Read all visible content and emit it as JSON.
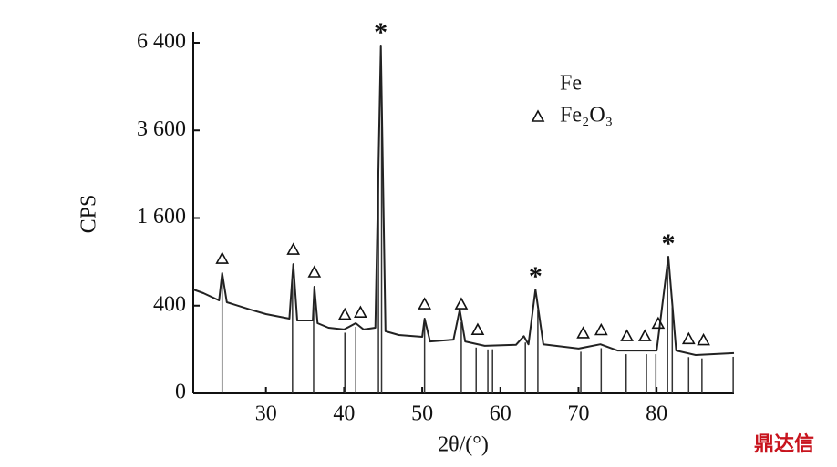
{
  "chart_data": {
    "type": "line",
    "x_label": "2θ/(°)",
    "y_label": "CPS",
    "y_scale": "sqrt",
    "xlim": [
      20.7,
      89.9
    ],
    "xticks": [
      30,
      40,
      50,
      60,
      70,
      80
    ],
    "ylim": [
      0,
      6400
    ],
    "yticks": [
      0,
      400,
      {
        "value": 1600,
        "label": "1 600"
      },
      {
        "value": 3600,
        "label": "3 600"
      },
      {
        "value": 6400,
        "label": "6 400"
      }
    ],
    "x": [
      20.7,
      22,
      24,
      24.4,
      25,
      28,
      30,
      33,
      33.5,
      34,
      36,
      36.2,
      36.6,
      38,
      40,
      41.5,
      42.5,
      44,
      44.7,
      45.3,
      47,
      50,
      50.3,
      51,
      54,
      54.8,
      55.5,
      58,
      62,
      63,
      63.6,
      64.5,
      65.5,
      70,
      72.8,
      75,
      80,
      81.5,
      82.5,
      85,
      89.9
    ],
    "series": [
      {
        "name": "trace",
        "color": "#222222",
        "values": [
          561,
          522,
          449,
          752,
          432,
          365,
          327,
          290,
          870,
          276,
          276,
          591,
          256,
          224,
          212,
          256,
          212,
          224,
          6300,
          200,
          177,
          166,
          290,
          140,
          150,
          365,
          140,
          117,
          122,
          170,
          125,
          561,
          125,
          104,
          125,
          95,
          95,
          972,
          95,
          76,
          84
        ]
      }
    ],
    "reference_lines": [
      24.4,
      33.4,
      36.1,
      40.1,
      41.5,
      44.4,
      44.8,
      50.3,
      55,
      56.9,
      58.4,
      59,
      63.2,
      64.8,
      70.3,
      72.9,
      76.1,
      78.7,
      79.9,
      81.4,
      82,
      84.1,
      85.8,
      89.8
    ],
    "markers": [
      {
        "name": "Fe",
        "symbol": "*",
        "x": [
          44.7,
          64.5,
          81.5
        ]
      },
      {
        "name": "Fe₂O₃",
        "symbol": "triangle",
        "x": [
          24.4,
          33.5,
          36.2,
          40.1,
          42.1,
          50.3,
          55,
          57.1,
          70.6,
          72.9,
          76.2,
          78.5,
          80.2,
          84.1,
          86
        ]
      }
    ],
    "watermark": "鼎达信"
  }
}
